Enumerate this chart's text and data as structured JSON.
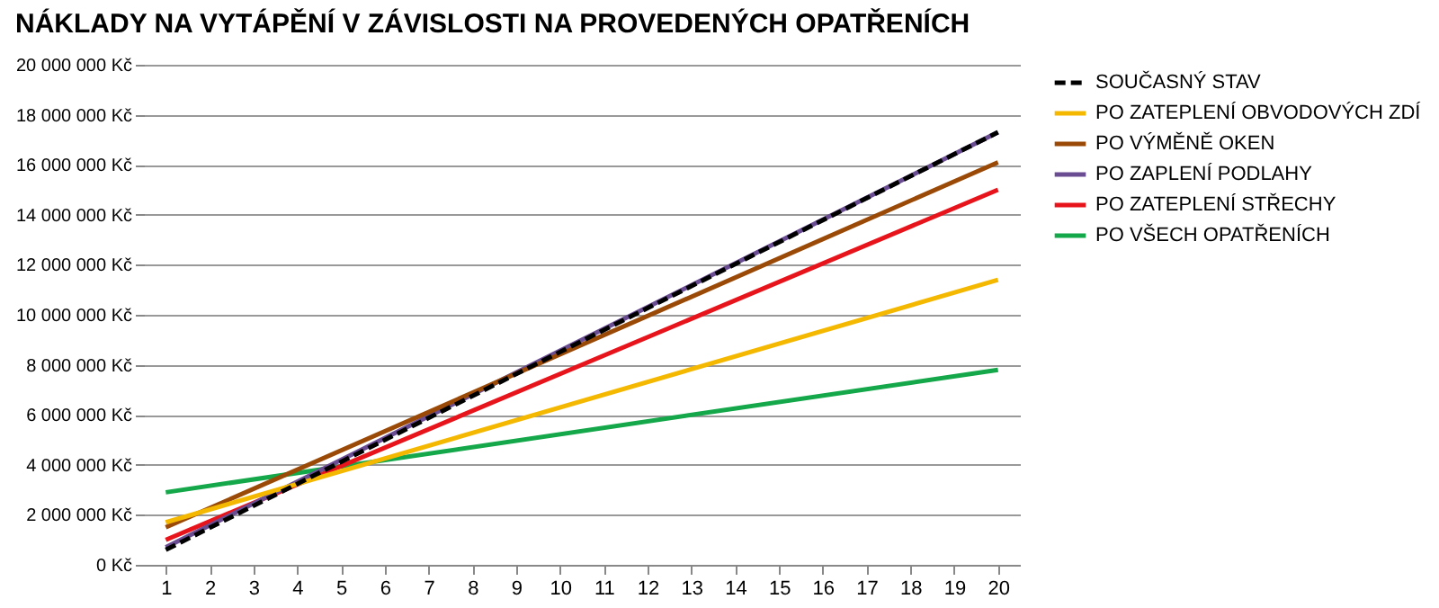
{
  "chart_data": {
    "type": "line",
    "title": "NÁKLADY NA VYTÁPĚNÍ V ZÁVISLOSTI NA PROVEDENÝCH OPATŘENÍCH",
    "xlim": [
      0.5,
      20.5
    ],
    "xticks": [
      1,
      2,
      3,
      4,
      5,
      6,
      7,
      8,
      9,
      10,
      11,
      12,
      13,
      14,
      15,
      16,
      17,
      18,
      19,
      20
    ],
    "ylim": [
      0,
      20000000
    ],
    "yticks": [
      {
        "value": 0,
        "label": "0 Kč"
      },
      {
        "value": 2000000,
        "label": "2 000 000 Kč"
      },
      {
        "value": 4000000,
        "label": "4 000 000 Kč"
      },
      {
        "value": 6000000,
        "label": "6 000 000 Kč"
      },
      {
        "value": 8000000,
        "label": "8 000 000 Kč"
      },
      {
        "value": 10000000,
        "label": "10 000 000 Kč"
      },
      {
        "value": 12000000,
        "label": "12 000 000 Kč"
      },
      {
        "value": 14000000,
        "label": "14 000 000 Kč"
      },
      {
        "value": 16000000,
        "label": "16 000 000 Kč"
      },
      {
        "value": 18000000,
        "label": "18 000 000 Kč"
      },
      {
        "value": 20000000,
        "label": "20 000 000 Kč"
      }
    ],
    "grid": "y",
    "legend": "right",
    "x": [
      1,
      20
    ],
    "series": [
      {
        "name": "SOUČASNÝ STAV",
        "color": "#000000",
        "line_style": "dashed",
        "values": [
          600000,
          17300000
        ]
      },
      {
        "name": "PO ZATEPLENÍ OBVODOVÝCH ZDÍ",
        "color": "#f5b800",
        "line_style": "solid",
        "values": [
          1700000,
          11400000
        ]
      },
      {
        "name": "PO VÝMĚNĚ OKEN",
        "color": "#9a4a06",
        "line_style": "solid",
        "values": [
          1500000,
          16100000
        ]
      },
      {
        "name": "PO ZAPLENÍ PODLAHY",
        "color": "#6a4c93",
        "line_style": "solid",
        "values": [
          700000,
          17300000
        ]
      },
      {
        "name": "PO ZATEPLENÍ STŘECHY",
        "color": "#e8141c",
        "line_style": "solid",
        "values": [
          1000000,
          15000000
        ]
      },
      {
        "name": "PO VŠECH OPATŘENÍCH",
        "color": "#14a84a",
        "line_style": "solid",
        "values": [
          2900000,
          7800000
        ]
      }
    ]
  }
}
